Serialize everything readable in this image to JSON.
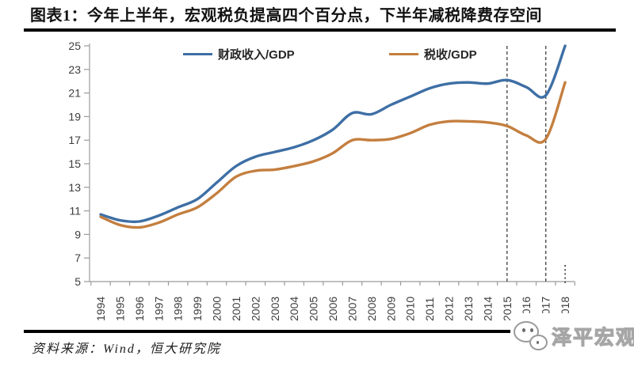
{
  "header": {
    "title": "图表1：今年上半年，宏观税负提高四个百分点，下半年减税降费存空间"
  },
  "footer": {
    "source": "资料来源：Wind，恒大研究院",
    "watermark": "泽平宏观"
  },
  "chart_data": {
    "type": "line",
    "title": "图表1：今年上半年，宏观税负提高四个百分点，下半年减税降费存空间",
    "categories": [
      "1994",
      "1995",
      "1996",
      "1997",
      "1998",
      "1999",
      "2000",
      "2001",
      "2002",
      "2003",
      "2004",
      "2005",
      "2006",
      "2007",
      "2008",
      "2009",
      "2010",
      "2011",
      "2012",
      "2013",
      "2014",
      "2015",
      "2016",
      "2017",
      "2018"
    ],
    "series": [
      {
        "name": "财政收入/GDP",
        "color": "#3e6fa5",
        "values": [
          10.7,
          10.2,
          10.1,
          10.6,
          11.3,
          12.0,
          13.4,
          14.8,
          15.6,
          16.0,
          16.4,
          17.0,
          17.9,
          19.3,
          19.2,
          20.0,
          20.7,
          21.4,
          21.8,
          21.9,
          21.8,
          22.1,
          21.5,
          20.8,
          25.0
        ]
      },
      {
        "name": "税收/GDP",
        "color": "#c47f3f",
        "values": [
          10.5,
          9.8,
          9.6,
          10.0,
          10.7,
          11.3,
          12.5,
          13.9,
          14.4,
          14.5,
          14.8,
          15.2,
          15.9,
          17.0,
          17.0,
          17.1,
          17.6,
          18.3,
          18.6,
          18.6,
          18.5,
          18.2,
          17.4,
          17.1,
          21.9
        ]
      }
    ],
    "xlabel": "",
    "ylabel": "",
    "ylim": [
      5,
      25
    ],
    "yticks": [
      5,
      7,
      9,
      11,
      13,
      15,
      17,
      19,
      21,
      23,
      25
    ],
    "grid": false,
    "legend_position": "top-inside",
    "x_tick_label_rotation": 90,
    "annotations": {
      "dashed_vlines_years": [
        "2015",
        "2017"
      ],
      "dotted_tick_year": "2018"
    }
  }
}
